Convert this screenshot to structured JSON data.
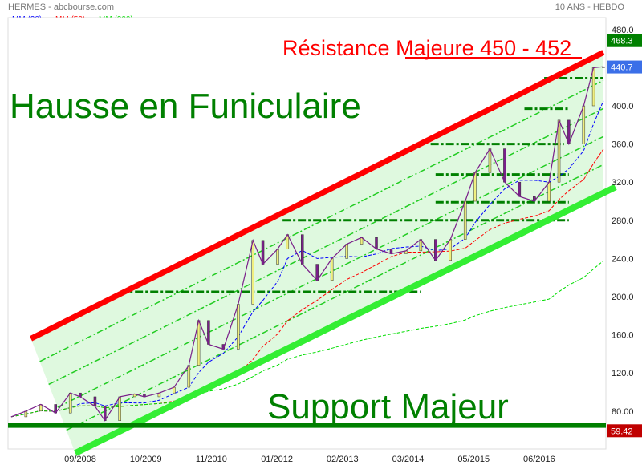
{
  "header": {
    "title": "HERMES - abcbourse.com",
    "period": "10 ANS - HEBDO"
  },
  "chart_data": {
    "type": "line",
    "legend": [
      {
        "name": "MM (20)",
        "color": "#0000ff"
      },
      {
        "name": "MM (50)",
        "color": "#ff0000"
      },
      {
        "name": "MM (200)",
        "color": "#00dd00"
      }
    ],
    "x_tick_labels": [
      "09/2008",
      "10/2009",
      "11/2010",
      "01/2012",
      "02/2013",
      "03/2014",
      "05/2015",
      "06/2016"
    ],
    "y_tick_labels": [
      "480.0",
      "400.0",
      "360.0",
      "320.0",
      "280.0",
      "240.0",
      "200.0",
      "160.0",
      "120.0",
      "80.00"
    ],
    "ylim": [
      40,
      490
    ],
    "grid": false,
    "series": [
      {
        "color": "#7a1f8a",
        "x": [
          "2007-07",
          "2007-10",
          "2008-01",
          "2008-04",
          "2008-07",
          "2008-09",
          "2008-12",
          "2009-02",
          "2009-05",
          "2009-08",
          "2009-10",
          "2010-01",
          "2010-04",
          "2010-07",
          "2010-09",
          "2010-11",
          "2011-02",
          "2011-05",
          "2011-08",
          "2011-10",
          "2012-01",
          "2012-03",
          "2012-06",
          "2012-09",
          "2012-12",
          "2013-03",
          "2013-06",
          "2013-09",
          "2013-12",
          "2014-03",
          "2014-06",
          "2014-09",
          "2014-12",
          "2015-03",
          "2015-05",
          "2015-08",
          "2015-11",
          "2016-02",
          "2016-05",
          "2016-08",
          "2016-10",
          "2016-12",
          "2017-03",
          "2017-05",
          "2017-07"
        ],
        "y": [
          74,
          80,
          87,
          78,
          99,
          95,
          85,
          70,
          95,
          98,
          95,
          99,
          105,
          128,
          175,
          150,
          145,
          192,
          259,
          234,
          250,
          265,
          234,
          217,
          240,
          255,
          262,
          250,
          245,
          248,
          260,
          238,
          260,
          300,
          330,
          355,
          320,
          305,
          300,
          320,
          385,
          360,
          400,
          440,
          441
        ]
      }
    ],
    "price_labels": [
      {
        "value": "468.3",
        "color": "#008000"
      },
      {
        "value": "440.7",
        "color": "#3b6fe8"
      },
      {
        "value": "59.42",
        "color": "#c00000"
      }
    ],
    "annotations": {
      "title_text": "Hausse en Funiculaire",
      "resistance_text": "Résistance Majeure 450 - 452",
      "support_text": "Support Majeur",
      "resistance_line": {
        "from": [
          "2007-11",
          156
        ],
        "to": [
          "2017-07",
          456
        ],
        "color": "#ff0000"
      },
      "support_line": {
        "from": [
          "2008-08",
          36
        ],
        "to": [
          "2017-07",
          309
        ],
        "color": "#33ee33"
      },
      "support_level": 65,
      "resistance_level": 450,
      "levels": [
        {
          "value": 205,
          "from": "2009-05",
          "to": "2014-06"
        },
        {
          "value": 280,
          "from": "2012-02",
          "to": "2016-12"
        },
        {
          "value": 299,
          "from": "2014-09",
          "to": "2016-12"
        },
        {
          "value": 328,
          "from": "2014-09",
          "to": "2016-12"
        },
        {
          "value": 360,
          "from": "2014-08",
          "to": "2016-11"
        },
        {
          "value": 397,
          "from": "2016-03",
          "to": "2016-12"
        },
        {
          "value": 429,
          "from": "2016-07",
          "to": "2017-07"
        }
      ]
    }
  }
}
